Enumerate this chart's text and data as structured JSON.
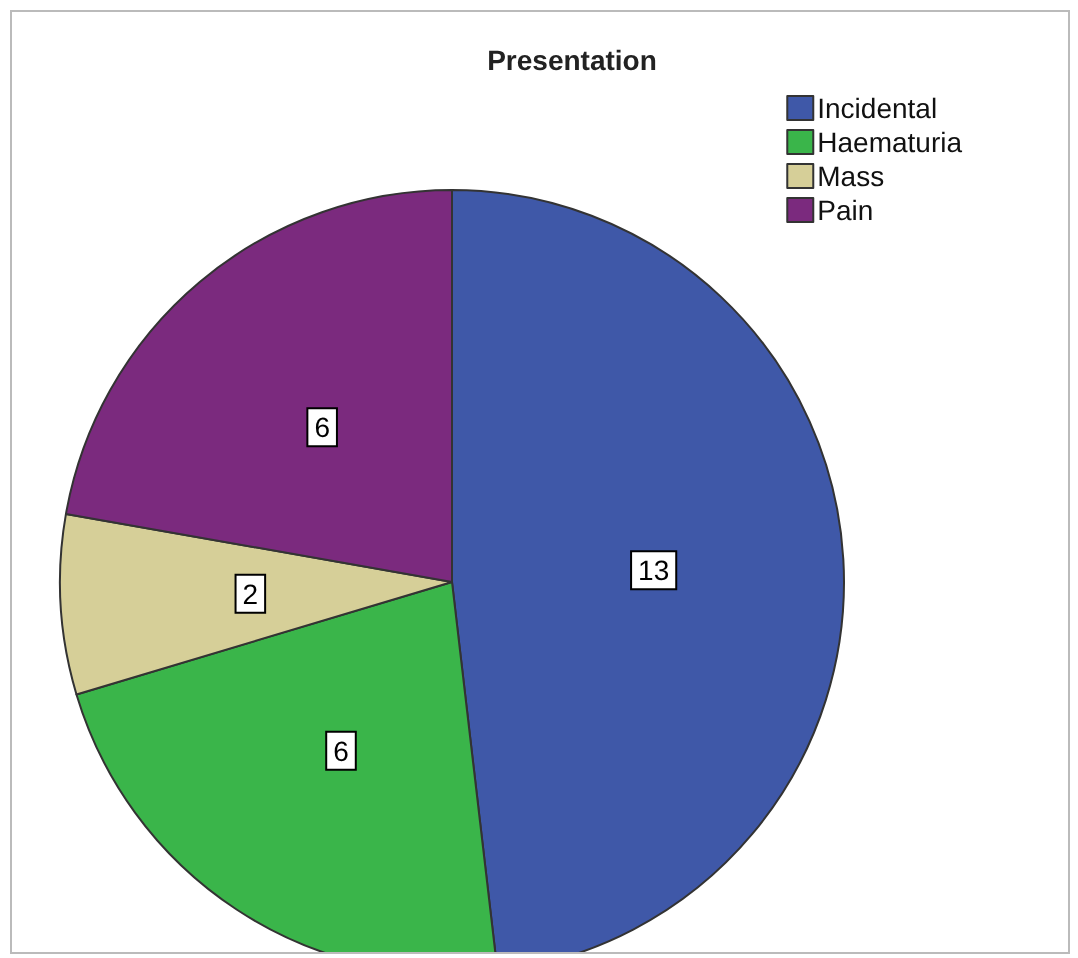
{
  "chart_data": {
    "type": "pie",
    "title": "Presentation",
    "categories": [
      "Incidental",
      "Haematuria",
      "Mass",
      "Pain"
    ],
    "values": [
      13,
      6,
      2,
      6
    ],
    "colors": [
      "#3f58a8",
      "#3ab54a",
      "#d6cf98",
      "#7b2a7e"
    ],
    "data_labels": true,
    "legend": "top right"
  }
}
